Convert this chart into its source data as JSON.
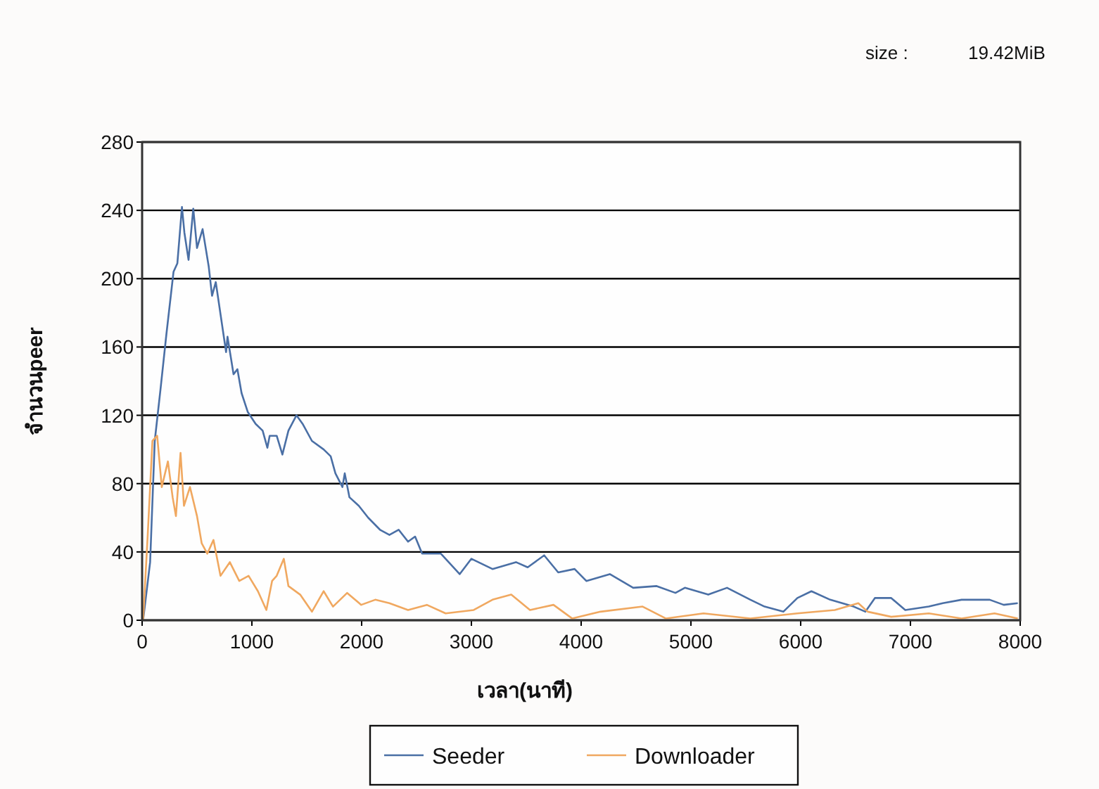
{
  "chart_data": {
    "type": "line",
    "annotations": [
      "size :",
      "19.42MiB"
    ],
    "xlabel": "เวลา(นาที)",
    "ylabel": "จำนวนpeer",
    "xlim": [
      0,
      8000
    ],
    "xticks": [
      0,
      1000,
      2000,
      3000,
      4000,
      5000,
      6000,
      7000,
      8000
    ],
    "ylim": [
      0,
      280
    ],
    "yticks": [
      0,
      40,
      80,
      120,
      160,
      200,
      240,
      280
    ],
    "grid": "y",
    "legend": "bottom",
    "marker": "none",
    "line_style": "solid",
    "series": [
      {
        "name": "Seeder",
        "color": "#4a6fa5",
        "x": [
          9,
          73,
          115,
          167,
          222,
          286,
          321,
          363,
          385,
          423,
          466,
          500,
          551,
          607,
          637,
          671,
          765,
          778,
          833,
          868,
          906,
          962,
          1034,
          1098,
          1141,
          1162,
          1226,
          1278,
          1333,
          1406,
          1462,
          1547,
          1654,
          1718,
          1761,
          1825,
          1846,
          1889,
          1974,
          2060,
          2167,
          2253,
          2337,
          2423,
          2487,
          2551,
          2722,
          2893,
          3000,
          3192,
          3406,
          3513,
          3663,
          3791,
          3940,
          4047,
          4261,
          4474,
          4688,
          4859,
          4945,
          5158,
          5329,
          5542,
          5671,
          5842,
          5970,
          6098,
          6269,
          6483,
          6590,
          6676,
          6825,
          6953,
          7167,
          7295,
          7466,
          7722,
          7850,
          7978
        ],
        "values": [
          0,
          34,
          105,
          135,
          168,
          204,
          209,
          242,
          227,
          211,
          241,
          218,
          229,
          207,
          190,
          198,
          157,
          166,
          144,
          147,
          133,
          122,
          115,
          111,
          101,
          108,
          108,
          97,
          111,
          120,
          115,
          105,
          100,
          96,
          86,
          78,
          86,
          72,
          67,
          60,
          53,
          50,
          53,
          46,
          49,
          39,
          39,
          27,
          36,
          30,
          34,
          31,
          38,
          28,
          30,
          23,
          27,
          19,
          20,
          16,
          19,
          15,
          19,
          12,
          8,
          5,
          13,
          17,
          12,
          8,
          5,
          13,
          13,
          6,
          8,
          10,
          12,
          12,
          9,
          10
        ]
      },
      {
        "name": "Downloader",
        "color": "#f0a860",
        "x": [
          9,
          51,
          94,
          137,
          179,
          235,
          278,
          308,
          350,
          381,
          436,
          500,
          543,
          594,
          650,
          714,
          799,
          885,
          970,
          1055,
          1132,
          1184,
          1226,
          1291,
          1333,
          1440,
          1547,
          1654,
          1739,
          1868,
          1996,
          2124,
          2253,
          2423,
          2594,
          2765,
          3021,
          3192,
          3363,
          3534,
          3748,
          3919,
          4176,
          4560,
          4773,
          5115,
          5542,
          5970,
          6311,
          6525,
          6611,
          6825,
          7167,
          7466,
          7766,
          7978
        ],
        "values": [
          0,
          50,
          105,
          108,
          78,
          93,
          72,
          61,
          98,
          67,
          78,
          61,
          45,
          39,
          47,
          26,
          34,
          23,
          26,
          17,
          6,
          23,
          26,
          36,
          20,
          15,
          5,
          17,
          8,
          16,
          9,
          12,
          10,
          6,
          9,
          4,
          6,
          12,
          15,
          6,
          9,
          1,
          5,
          8,
          1,
          4,
          1,
          4,
          6,
          10,
          5,
          2,
          4,
          1,
          4,
          1
        ]
      }
    ]
  }
}
